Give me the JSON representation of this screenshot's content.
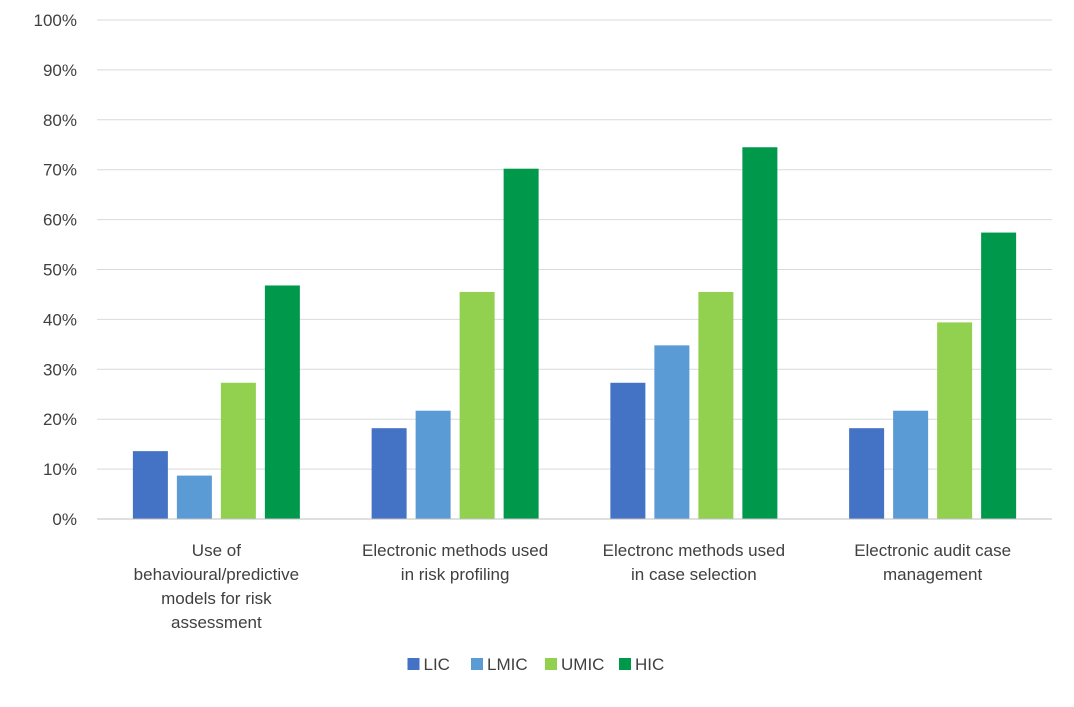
{
  "chart_data": {
    "type": "bar",
    "title": "",
    "xlabel": "",
    "ylabel": "",
    "ylim": [
      0,
      1
    ],
    "y_ticks": [
      0,
      0.1,
      0.2,
      0.3,
      0.4,
      0.5,
      0.6,
      0.7,
      0.8,
      0.9,
      1.0
    ],
    "y_tick_labels": [
      "0%",
      "10%",
      "20%",
      "30%",
      "40%",
      "50%",
      "60%",
      "70%",
      "80%",
      "90%",
      "100%"
    ],
    "grid": true,
    "legend_position": "bottom",
    "categories": [
      [
        "Use of",
        "behavioural/predictive",
        "models for risk",
        "assessment"
      ],
      [
        "Electronic methods used",
        "in risk profiling"
      ],
      [
        "Electronc methods used",
        "in case selection"
      ],
      [
        "Electronic audit case",
        "management"
      ]
    ],
    "series": [
      {
        "name": "LIC",
        "color": "#4472C4",
        "values": [
          0.136,
          0.182,
          0.273,
          0.182
        ]
      },
      {
        "name": "LMIC",
        "color": "#5B9BD5",
        "values": [
          0.087,
          0.217,
          0.348,
          0.217
        ]
      },
      {
        "name": "UMIC",
        "color": "#92D050",
        "values": [
          0.273,
          0.455,
          0.455,
          0.394
        ]
      },
      {
        "name": "HIC",
        "color": "#00994C",
        "values": [
          0.468,
          0.702,
          0.745,
          0.574
        ]
      }
    ]
  }
}
